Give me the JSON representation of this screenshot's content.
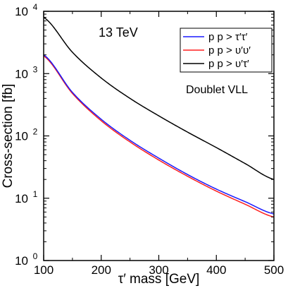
{
  "chart_data": {
    "type": "line",
    "title": "",
    "xlabel": "τ′ mass [GeV]",
    "ylabel": "Cross-section [fb]",
    "xlim": [
      100,
      500
    ],
    "ylim": [
      1,
      10000
    ],
    "yscale": "log",
    "x_ticks": [
      "100",
      "200",
      "300",
      "400",
      "500"
    ],
    "y_ticks": [
      {
        "base": "10",
        "exp": "0"
      },
      {
        "base": "10",
        "exp": "1"
      },
      {
        "base": "10",
        "exp": "2"
      },
      {
        "base": "10",
        "exp": "3"
      },
      {
        "base": "10",
        "exp": "4"
      }
    ],
    "grid": false,
    "legend_position": "top-right",
    "annotations": [
      "13 TeV",
      "Doublet VLL"
    ],
    "x": [
      100,
      150,
      200,
      250,
      300,
      350,
      400,
      450,
      500
    ],
    "series": [
      {
        "name": "p p > τ′τ′",
        "color": "#1a1aff",
        "values": [
          2000,
          500,
          185,
          85,
          44,
          24,
          14,
          8.8,
          5.6
        ]
      },
      {
        "name": "p p > υ′υ′",
        "color": "#ff2020",
        "values": [
          1920,
          480,
          175,
          80,
          41,
          22.5,
          13,
          8.0,
          5.0
        ]
      },
      {
        "name": "p p > υ′τ′",
        "color": "#000000",
        "values": [
          8000,
          2200,
          850,
          400,
          210,
          115,
          65,
          36,
          20
        ]
      }
    ]
  }
}
